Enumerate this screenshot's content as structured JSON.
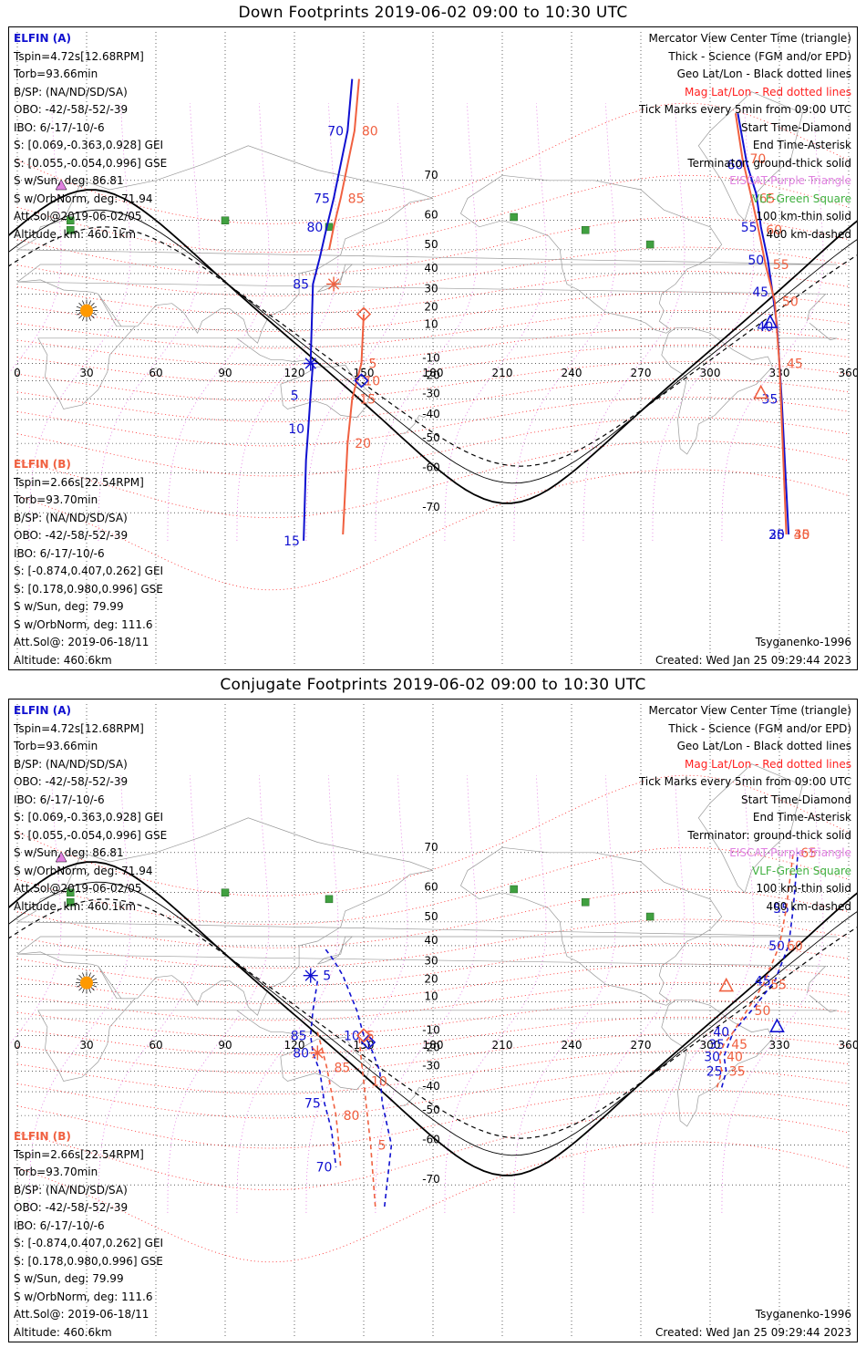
{
  "panels": [
    {
      "title": "Down Footprints 2019-06-02 09:00 to 10:30 UTC",
      "mode": "down"
    },
    {
      "title": "Conjugate Footprints 2019-06-02 09:00 to 10:30 UTC",
      "mode": "conjugate"
    }
  ],
  "elfin_a": {
    "name": "ELFIN (A)",
    "lines": [
      "Tspin=4.72s[12.68RPM]",
      "Torb=93.66min",
      "B/SP: (NA/ND/SD/SA)",
      "OBO: -42/-58/-52/-39",
      "IBO: 6/-17/-10/-6",
      "S: [0.069,-0.363,0.928] GEI",
      "S: [0.055,-0.054,0.996] GSE",
      "S w/Sun, deg: 86.81",
      "S w/OrbNorm, deg: 71.94",
      "Att.Sol@2019-06-02/05",
      "Altitude, km: 460.1km"
    ]
  },
  "elfin_b": {
    "name": "ELFIN (B)",
    "lines": [
      "Tspin=2.66s[22.54RPM]",
      "Torb=93.70min",
      "B/SP: (NA/ND/SD/SA)",
      "OBO: -42/-58/-52/-39",
      "IBO: 6/-17/-10/-6",
      "S: [-0.874,0.407,0.262] GEI",
      "S: [0.178,0.980,0.996] GSE",
      "S w/Sun, deg: 79.99",
      "S w/OrbNorm, deg: 111.6",
      "Att.Sol@: 2019-06-18/11",
      "Altitude: 460.6km"
    ]
  },
  "legend": [
    {
      "text": "Mercator View Center Time (triangle)",
      "style": "black"
    },
    {
      "text": "Thick - Science (FGM and/or EPD)",
      "style": "black"
    },
    {
      "text": "Geo Lat/Lon - Black dotted lines",
      "style": "black"
    },
    {
      "text": "Mag Lat/Lon - Red dotted lines",
      "style": "red"
    },
    {
      "text": "Tick Marks every 5min from 09:00 UTC",
      "style": "black"
    },
    {
      "text": "Start Time-Diamond",
      "style": "black"
    },
    {
      "text": "End Time-Asterisk",
      "style": "black"
    },
    {
      "text": "Terminator: ground-thick solid",
      "style": "black"
    },
    {
      "text": "EISCAT-Purple Triangle",
      "style": "purple"
    },
    {
      "text": "VLF-Green Square",
      "style": "green"
    },
    {
      "text": "100 km-thin solid",
      "style": "black"
    },
    {
      "text": "400 km-dashed",
      "style": "black"
    }
  ],
  "model": "Tsyganenko-1996",
  "created": "Created: Wed Jan 25 09:29:44 2023",
  "lon_ticks": [
    "0",
    "30",
    "60",
    "90",
    "120",
    "150",
    "180",
    "210",
    "240",
    "270",
    "300",
    "330",
    "360"
  ],
  "lat_ticks": [
    "70",
    "60",
    "50",
    "40",
    "30",
    "20",
    "10",
    "-10",
    "-20",
    "-30",
    "-40",
    "-50",
    "-60",
    "-70"
  ],
  "colors": {
    "sat_a": "#1010d0",
    "sat_b": "#f06040",
    "mag_grid": "#ff2020",
    "geo_grid": "#000000",
    "eiscat": "#e080e0",
    "vlf": "#40a040",
    "sun": "#ff9900"
  },
  "tracks": {
    "down": {
      "a1": {
        "lon": [
          145,
          143,
          140,
          137,
          134,
          131,
          128,
          127
        ],
        "lat": [
          83,
          78,
          73,
          66,
          58,
          47,
          35,
          -10
        ],
        "labels": [
          [
            "70",
            1
          ],
          [
            "75",
            3
          ],
          [
            "80",
            4
          ],
          [
            "85",
            6
          ]
        ]
      },
      "a2": {
        "lon": [
          128,
          127,
          126,
          125,
          124
        ],
        "lat": [
          -10,
          -28,
          -44,
          -56,
          -75
        ],
        "labels": [
          [
            "5",
            1
          ],
          [
            "10",
            2
          ],
          [
            "15",
            4
          ]
        ]
      },
      "a3": {
        "lon": [
          312,
          316,
          320,
          322,
          325,
          327,
          329,
          331,
          334
        ],
        "lat": [
          80,
          73,
          67,
          58,
          46,
          31,
          12,
          -30,
          -74
        ],
        "labels": [
          [
            "60",
            1
          ],
          [
            "55",
            3
          ],
          [
            "50",
            4
          ],
          [
            "45",
            5
          ],
          [
            "40",
            6
          ],
          [
            "35",
            7
          ],
          [
            "30",
            8
          ],
          [
            "25",
            9
          ]
        ]
      },
      "b1": {
        "lon": [
          148,
          146,
          143,
          140,
          137,
          135
        ],
        "lat": [
          83,
          78,
          73,
          66,
          58,
          50
        ],
        "labels": [
          [
            "80",
            1
          ],
          [
            "85",
            3
          ]
        ]
      },
      "b2": {
        "lon": [
          150,
          149,
          147,
          145,
          143,
          141
        ],
        "lat": [
          19,
          -10,
          -20,
          -30,
          -50,
          -74
        ],
        "labels": [
          [
            "5",
            1
          ],
          [
            "10",
            2
          ],
          [
            "15",
            3
          ],
          [
            "20",
            4
          ]
        ]
      },
      "b3": {
        "lon": [
          311,
          314,
          318,
          321,
          324,
          328,
          330,
          333
        ],
        "lat": [
          80,
          74,
          66,
          57,
          44,
          26,
          -10,
          -74
        ],
        "labels": [
          [
            "70",
            1
          ],
          [
            "65",
            2
          ],
          [
            "60",
            3
          ],
          [
            "55",
            4
          ],
          [
            "50",
            5
          ],
          [
            "45",
            6
          ],
          [
            "40",
            7
          ],
          [
            "35",
            8
          ]
        ]
      }
    },
    "conjugate": {
      "a1": {
        "lon": [
          159,
          162,
          158,
          157,
          154,
          152
        ],
        "lat": [
          -74,
          -60,
          -45,
          -30,
          -20,
          -14
        ],
        "labels": []
      },
      "a2": {
        "lon": [
          152,
          150,
          147,
          144,
          141,
          137,
          133
        ],
        "lat": [
          -14,
          -10,
          5,
          15,
          25,
          33,
          39
        ],
        "labels": [
          [
            "10",
            1
          ],
          [
            "5",
            4
          ]
        ]
      },
      "b1": {
        "lon": [
          155,
          153,
          151,
          150,
          149,
          148
        ],
        "lat": [
          -74,
          -60,
          -45,
          -35,
          -25,
          -10
        ],
        "labels": [
          [
            "5",
            1
          ],
          [
            "10",
            3
          ],
          [
            "5",
            5
          ]
        ]
      },
      "a3": {
        "lon": [
          130,
          128,
          127,
          128,
          131,
          133,
          136,
          138
        ],
        "lat": [
          22,
          5,
          -10,
          -20,
          -30,
          -45,
          -55,
          -66
        ],
        "labels": [
          [
            "85",
            2
          ],
          [
            "80",
            3
          ],
          [
            "75",
            5
          ],
          [
            "70",
            7
          ]
        ]
      },
      "b3": {
        "lon": [
          130,
          132,
          134,
          136,
          138,
          139,
          140
        ],
        "lat": [
          -8,
          -18,
          -28,
          -40,
          -50,
          -58,
          -66
        ],
        "labels": [
          [
            "85",
            2
          ],
          [
            "80",
            4
          ]
        ]
      },
      "a4": {
        "lon": [
          305,
          307,
          306,
          308,
          310,
          318,
          328,
          334,
          336,
          338
        ],
        "lat": [
          -38,
          -30,
          -22,
          -15,
          -8,
          5,
          22,
          40,
          55,
          70
        ],
        "labels": [
          [
            "25",
            1
          ],
          [
            "30",
            2
          ],
          [
            "35",
            3
          ],
          [
            "40",
            4
          ],
          [
            "45",
            6
          ],
          [
            "50",
            7
          ],
          [
            "55",
            8
          ]
        ]
      },
      "b4": {
        "lon": [
          303,
          305,
          304,
          306,
          310,
          316,
          323,
          330,
          333,
          336
        ],
        "lat": [
          -38,
          -30,
          -22,
          -15,
          -8,
          5,
          20,
          40,
          55,
          70
        ],
        "labels": [
          [
            "35",
            1
          ],
          [
            "40",
            2
          ],
          [
            "45",
            3
          ],
          [
            "50",
            5
          ],
          [
            "55",
            6
          ],
          [
            "60",
            7
          ],
          [
            "65",
            9
          ]
        ]
      }
    }
  }
}
